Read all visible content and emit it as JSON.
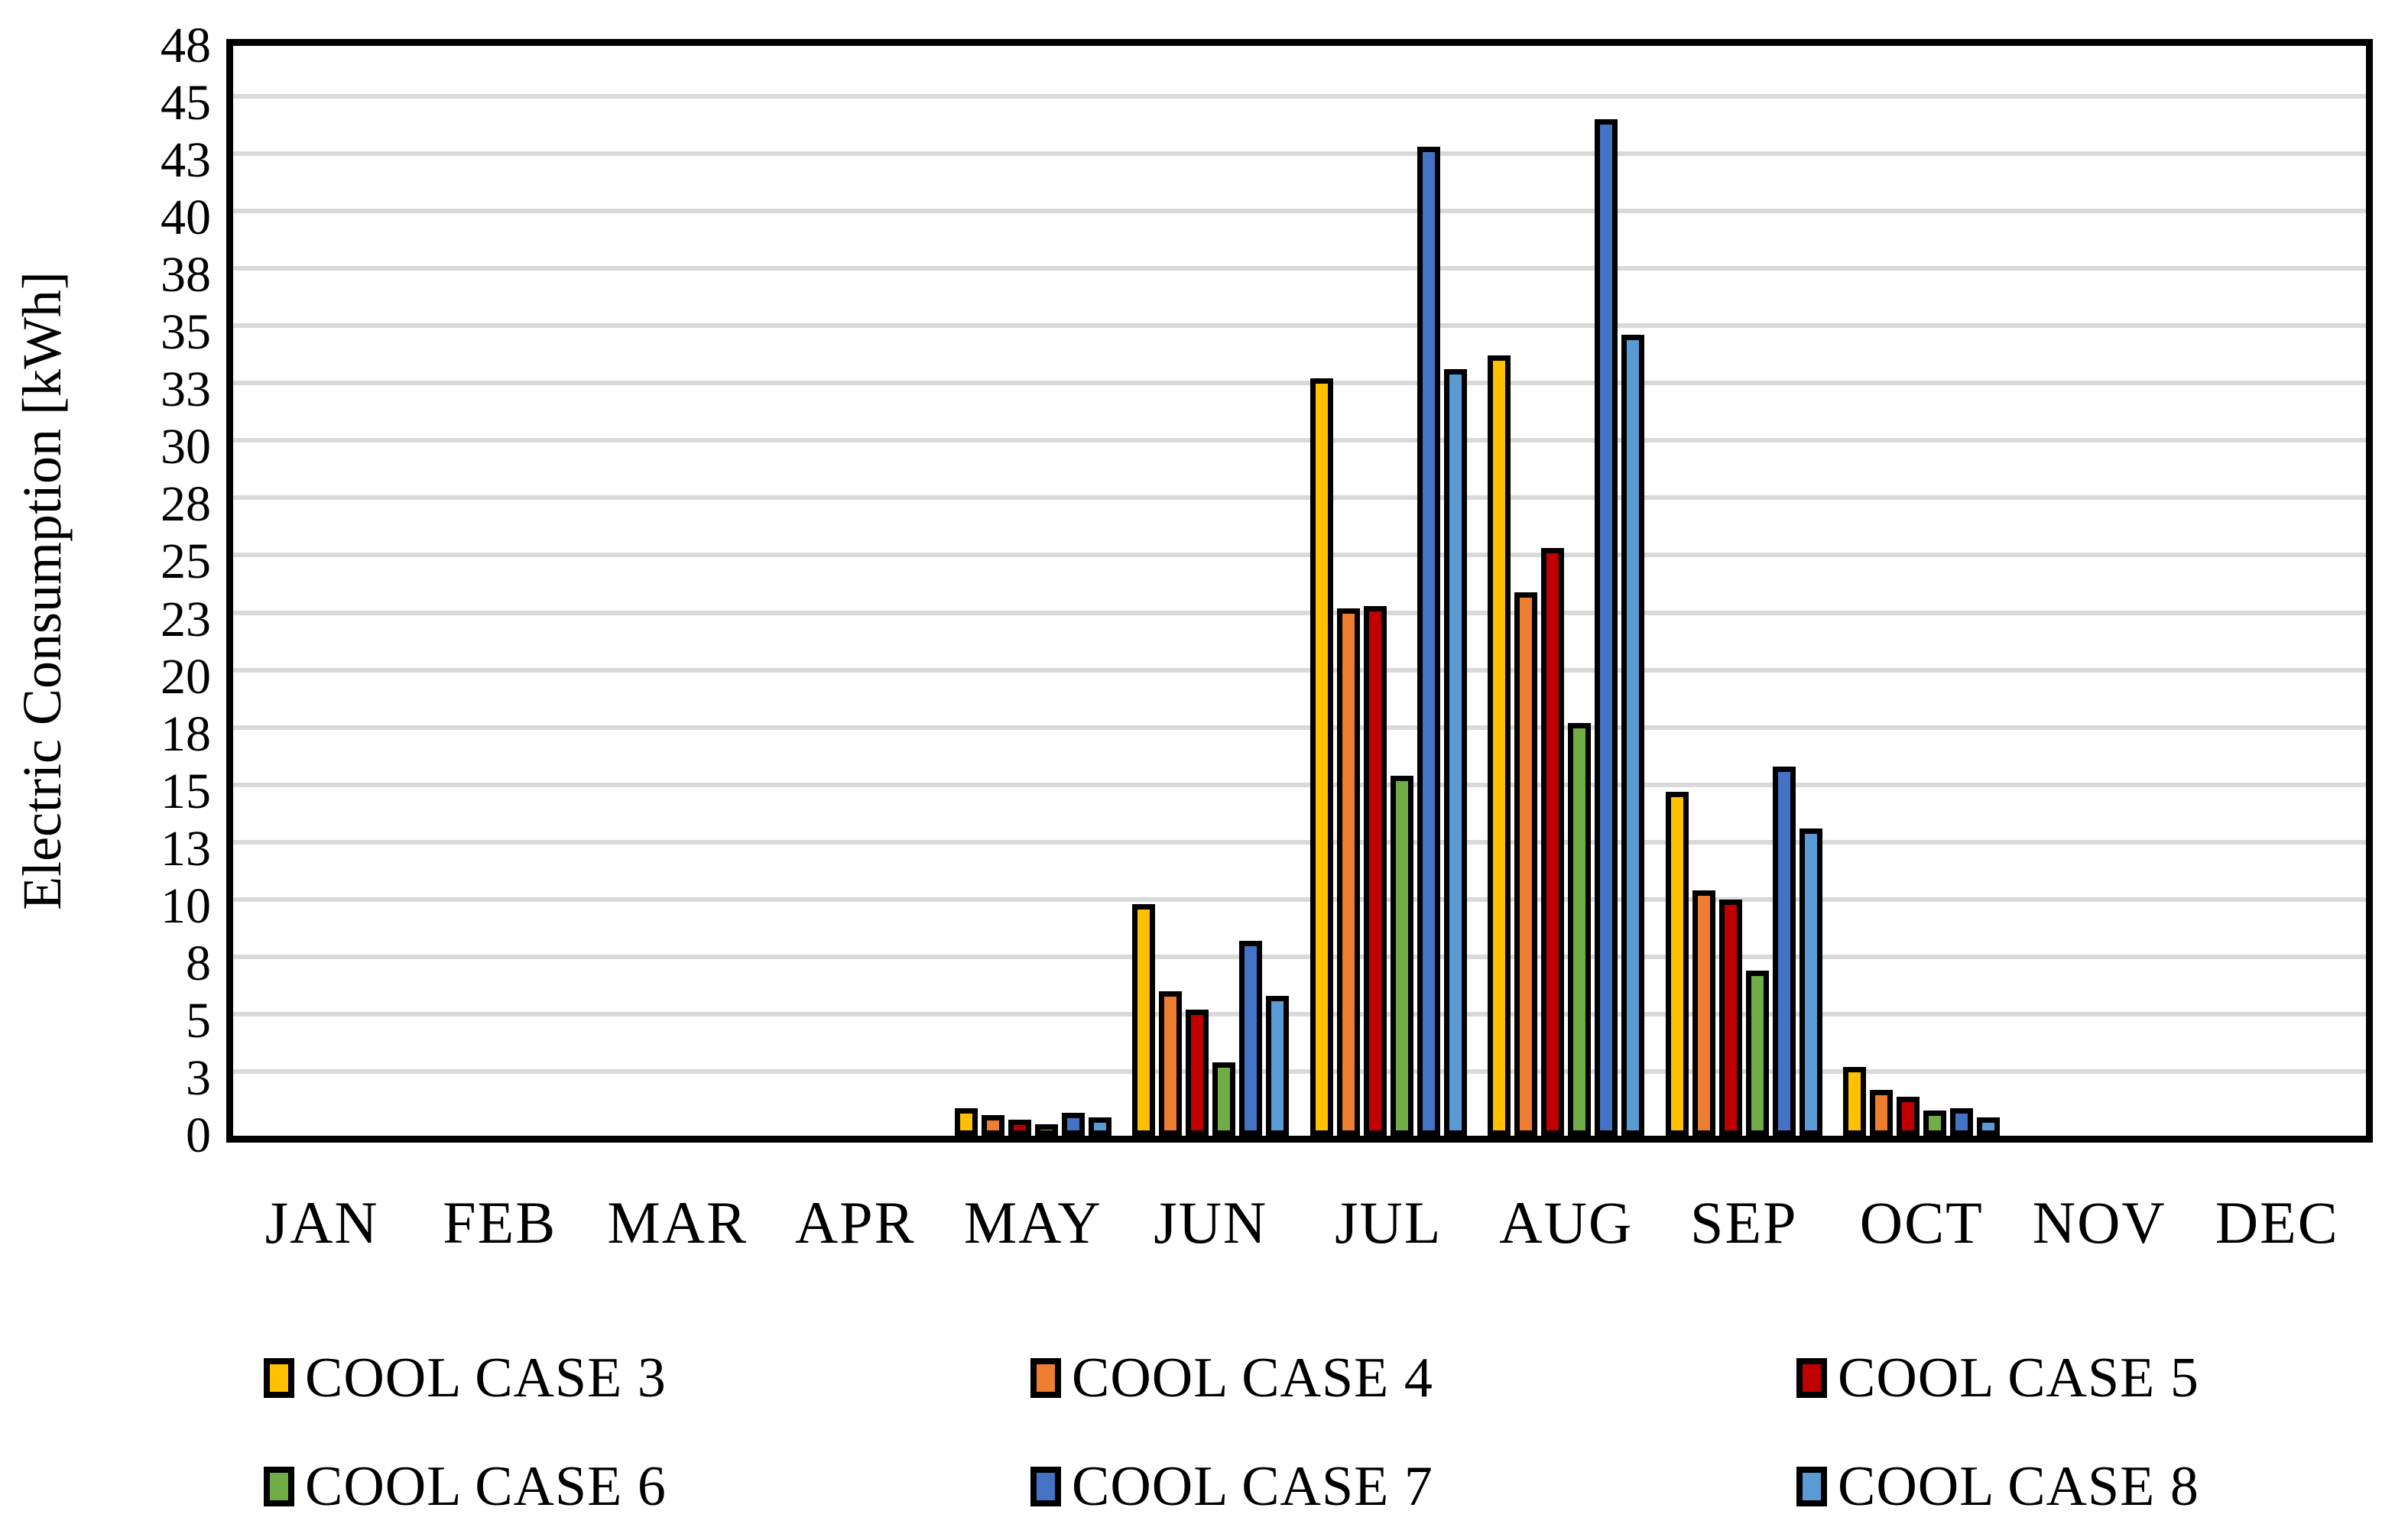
{
  "chart_data": {
    "type": "bar",
    "title": "",
    "xlabel": "",
    "ylabel": "Electric Consumption [kWh]",
    "ylim": [
      0,
      47.5
    ],
    "ytick_step": 2.5,
    "ytick_labels_bottom_to_top": [
      "0",
      "3",
      "5",
      "8",
      "10",
      "13",
      "15",
      "18",
      "20",
      "23",
      "25",
      "28",
      "30",
      "33",
      "35",
      "38",
      "40",
      "43",
      "45",
      "48"
    ],
    "grid": true,
    "gridline_color": "#D9D9D9",
    "axis_color": "#000000",
    "legend_position": "bottom",
    "categories": [
      "JAN",
      "FEB",
      "MAR",
      "APR",
      "MAY",
      "JUN",
      "JUL",
      "AUG",
      "SEP",
      "OCT",
      "NOV",
      "DEC"
    ],
    "series": [
      {
        "name": "COOL CASE 3",
        "color": "#FFC000",
        "values": [
          0,
          0,
          0,
          0,
          1.2,
          10.1,
          33.0,
          34.0,
          15.0,
          3.0,
          0,
          0
        ]
      },
      {
        "name": "COOL CASE 4",
        "color": "#ED7D31",
        "values": [
          0,
          0,
          0,
          0,
          0.9,
          6.3,
          23.0,
          23.7,
          10.7,
          2.0,
          0,
          0
        ]
      },
      {
        "name": "COOL CASE 5",
        "color": "#C00000",
        "values": [
          0,
          0,
          0,
          0,
          0.7,
          5.5,
          23.1,
          25.6,
          10.3,
          1.7,
          0,
          0
        ]
      },
      {
        "name": "COOL CASE 6",
        "color": "#70AD47",
        "values": [
          0,
          0,
          0,
          0,
          0.5,
          3.2,
          15.7,
          18.0,
          7.2,
          1.1,
          0,
          0
        ]
      },
      {
        "name": "COOL CASE 7",
        "color": "#4472C4",
        "values": [
          0,
          0,
          0,
          0,
          1.0,
          8.5,
          43.1,
          44.3,
          16.1,
          1.2,
          0,
          0
        ]
      },
      {
        "name": "COOL CASE 8",
        "color": "#5B9BD5",
        "values": [
          0,
          0,
          0,
          0,
          0.8,
          6.1,
          33.4,
          34.9,
          13.4,
          0.8,
          0,
          0
        ]
      }
    ],
    "legend_layout": {
      "rows": [
        [
          "COOL CASE 3",
          "COOL CASE 4",
          "COOL CASE 5"
        ],
        [
          "COOL CASE 6",
          "COOL CASE 7",
          "COOL CASE 8"
        ]
      ]
    }
  }
}
